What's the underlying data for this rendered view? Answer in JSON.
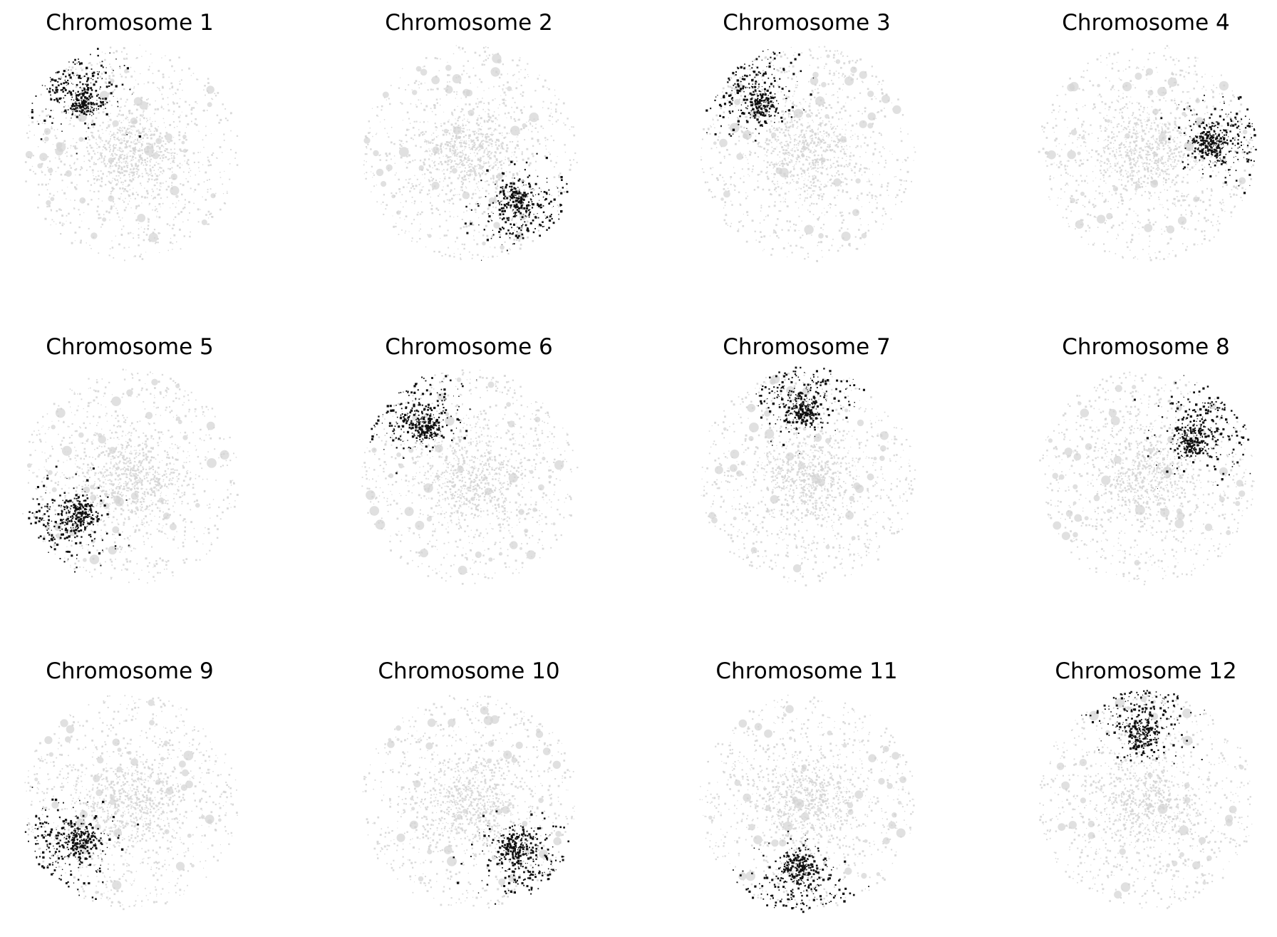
{
  "figure": {
    "background": "#ffffff",
    "point_color_background": "#d3d3d3",
    "point_color_highlight": "#111111"
  },
  "chart_data": [
    {
      "type": "scatter",
      "title": "Chromosome 1",
      "highlight_region": "upper-left",
      "grid": false,
      "axes": "off"
    },
    {
      "type": "scatter",
      "title": "Chromosome 2",
      "highlight_region": "lower-right",
      "grid": false,
      "axes": "off"
    },
    {
      "type": "scatter",
      "title": "Chromosome 3",
      "highlight_region": "upper-left",
      "grid": false,
      "axes": "off"
    },
    {
      "type": "scatter",
      "title": "Chromosome 4",
      "highlight_region": "right",
      "grid": false,
      "axes": "off"
    },
    {
      "type": "scatter",
      "title": "Chromosome 5",
      "highlight_region": "lower-left",
      "grid": false,
      "axes": "off"
    },
    {
      "type": "scatter",
      "title": "Chromosome 6",
      "highlight_region": "upper-left",
      "grid": false,
      "axes": "off"
    },
    {
      "type": "scatter",
      "title": "Chromosome 7",
      "highlight_region": "top",
      "grid": false,
      "axes": "off"
    },
    {
      "type": "scatter",
      "title": "Chromosome 8",
      "highlight_region": "upper-right",
      "grid": false,
      "axes": "off"
    },
    {
      "type": "scatter",
      "title": "Chromosome 9",
      "highlight_region": "lower-left",
      "grid": false,
      "axes": "off"
    },
    {
      "type": "scatter",
      "title": "Chromosome 10",
      "highlight_region": "lower-right",
      "grid": false,
      "axes": "off"
    },
    {
      "type": "scatter",
      "title": "Chromosome 11",
      "highlight_region": "bottom",
      "grid": false,
      "axes": "off"
    },
    {
      "type": "scatter",
      "title": "Chromosome 12",
      "highlight_region": "top",
      "grid": false,
      "axes": "off"
    }
  ]
}
